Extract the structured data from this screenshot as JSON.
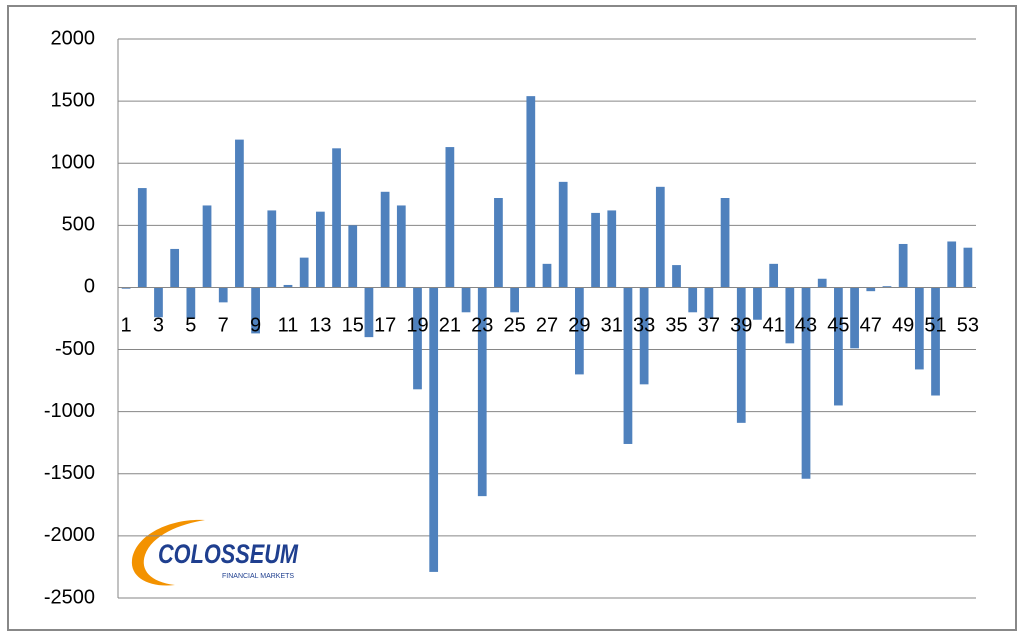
{
  "chart_data": {
    "type": "bar",
    "categories": [
      "1",
      null,
      "3",
      null,
      "5",
      null,
      "7",
      null,
      "9",
      null,
      "11",
      null,
      "13",
      null,
      "15",
      null,
      "17",
      null,
      "19",
      null,
      "21",
      null,
      "23",
      null,
      "25",
      null,
      "27",
      null,
      "29",
      null,
      "31",
      null,
      "33",
      null,
      "35",
      null,
      "37",
      null,
      "39",
      null,
      "41",
      null,
      "43",
      null,
      "45",
      null,
      "47",
      null,
      "49",
      null,
      "51",
      null,
      "53"
    ],
    "values": [
      -10,
      800,
      -240,
      310,
      -250,
      660,
      -120,
      1190,
      -370,
      620,
      20,
      240,
      610,
      1120,
      500,
      -400,
      770,
      660,
      -820,
      -2290,
      1130,
      -200,
      -1680,
      720,
      -200,
      1540,
      190,
      850,
      -700,
      600,
      620,
      -1260,
      -780,
      810,
      180,
      -200,
      -250,
      720,
      -1090,
      -260,
      190,
      -450,
      -1540,
      70,
      -950,
      -490,
      -30,
      10,
      350,
      -660,
      -870,
      370,
      320
    ],
    "color": "#4f81bd",
    "ylim": [
      -2500,
      2000
    ],
    "yticks": [
      -2500,
      -2000,
      -1500,
      -1000,
      -500,
      0,
      500,
      1000,
      1500,
      2000
    ],
    "grid": true
  },
  "logo": {
    "name": "COLOSSEUM",
    "tagline": "FINANCIAL MARKETS"
  }
}
